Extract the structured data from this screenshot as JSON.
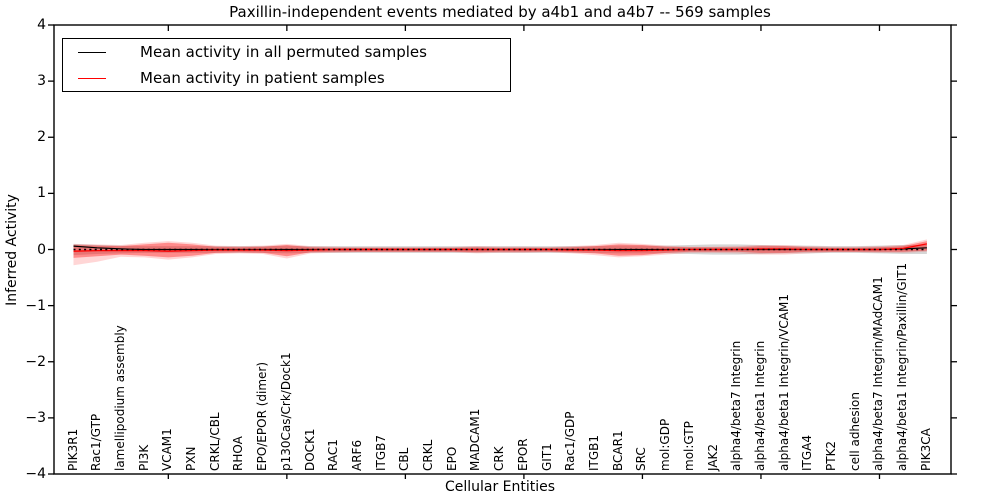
{
  "chart_data": {
    "type": "line",
    "title": "Paxillin-independent events mediated by a4b1 and a4b7 -- 569 samples",
    "xlabel": "Cellular Entities",
    "ylabel": "Inferred Activity",
    "ylim": [
      -4,
      4
    ],
    "yticks": [
      4,
      3,
      2,
      1,
      0,
      -1,
      -2,
      -3,
      -4
    ],
    "xtick_major_indices": [
      4,
      9,
      14,
      19,
      24,
      29,
      34
    ],
    "grid": false,
    "legend_position": "upper left",
    "background_color": "#ffffff",
    "axis_color": "#000000",
    "categories": [
      "PIK3R1",
      "Rac1/GTP",
      "lamellipodium assembly",
      "PI3K",
      "VCAM1",
      "PXN",
      "CRKL/CBL",
      "RHOA",
      "EPO/EPOR (dimer)",
      "p130Cas/Crk/Dock1",
      "DOCK1",
      "RAC1",
      "ARF6",
      "ITGB7",
      "CBL",
      "CRKL",
      "EPO",
      "MADCAM1",
      "CRK",
      "EPOR",
      "GIT1",
      "Rac1/GDP",
      "ITGB1",
      "BCAR1",
      "SRC",
      "mol:GDP",
      "mol:GTP",
      "JAK2",
      "alpha4/beta7 Integrin",
      "alpha4/beta1 Integrin",
      "alpha4/beta1 Integrin/VCAM1",
      "ITGA4",
      "PTK2",
      "cell adhesion",
      "alpha4/beta7 Integrin/MAdCAM1",
      "alpha4/beta1 Integrin/Paxillin/GIT1",
      "PIK3CA"
    ],
    "legend_entries": [
      {
        "label": "Mean activity in all permuted samples",
        "color": "#000000"
      },
      {
        "label": "Mean activity in patient samples",
        "color": "#ff0000"
      }
    ],
    "reference_line": {
      "y": 0,
      "style": "dotted",
      "color": "#000000"
    },
    "series": [
      {
        "name": "Mean activity in all permuted samples",
        "color": "#000000",
        "style": "solid",
        "values": [
          0.06,
          0.03,
          0.01,
          0,
          0,
          0,
          0,
          0,
          0,
          0,
          0,
          0,
          0,
          0,
          0,
          0,
          0,
          0,
          0,
          0,
          0,
          0,
          0,
          0,
          0,
          0,
          0,
          0,
          0,
          0,
          0,
          0,
          0,
          0,
          0,
          0.01,
          0.03
        ]
      },
      {
        "name": "Mean activity in patient samples",
        "color": "#ff0000",
        "style": "solid",
        "values": [
          -0.03,
          -0.02,
          -0.02,
          -0.02,
          -0.03,
          -0.02,
          -0.01,
          -0.01,
          -0.01,
          -0.02,
          -0.01,
          0,
          0,
          0,
          0,
          0,
          0,
          0,
          0,
          0,
          0,
          -0.01,
          -0.01,
          -0.02,
          -0.02,
          -0.01,
          0,
          0,
          0,
          0.01,
          0.01,
          0,
          0,
          0,
          0,
          0.02,
          0.1
        ]
      }
    ],
    "bands": [
      {
        "name": "permuted-samples-range",
        "color": "#999999",
        "opacity": 0.4,
        "upper": [
          0.1,
          0.08,
          0.07,
          0.06,
          0.06,
          0.06,
          0.06,
          0.06,
          0.06,
          0.07,
          0.06,
          0.06,
          0.06,
          0.06,
          0.06,
          0.06,
          0.06,
          0.06,
          0.06,
          0.06,
          0.06,
          0.06,
          0.06,
          0.07,
          0.07,
          0.07,
          0.08,
          0.09,
          0.09,
          0.08,
          0.07,
          0.07,
          0.06,
          0.06,
          0.07,
          0.08,
          0.08
        ],
        "lower": [
          -0.1,
          -0.08,
          -0.07,
          -0.06,
          -0.06,
          -0.06,
          -0.06,
          -0.06,
          -0.06,
          -0.07,
          -0.06,
          -0.06,
          -0.06,
          -0.06,
          -0.06,
          -0.06,
          -0.06,
          -0.06,
          -0.06,
          -0.06,
          -0.06,
          -0.06,
          -0.06,
          -0.07,
          -0.07,
          -0.07,
          -0.08,
          -0.09,
          -0.09,
          -0.08,
          -0.07,
          -0.07,
          -0.06,
          -0.06,
          -0.07,
          -0.08,
          -0.08
        ]
      },
      {
        "name": "patient-samples-range-outer",
        "color": "#ff0000",
        "opacity": 0.16,
        "upper": [
          0.1,
          0.09,
          0.08,
          0.12,
          0.15,
          0.12,
          0.07,
          0.06,
          0.07,
          0.1,
          0.06,
          0.05,
          0.04,
          0.04,
          0.04,
          0.04,
          0.04,
          0.06,
          0.05,
          0.05,
          0.04,
          0.06,
          0.08,
          0.12,
          0.1,
          0.07,
          0.05,
          0.05,
          0.06,
          0.08,
          0.08,
          0.06,
          0.05,
          0.05,
          0.06,
          0.08,
          0.18
        ],
        "lower": [
          -0.28,
          -0.22,
          -0.13,
          -0.14,
          -0.18,
          -0.14,
          -0.08,
          -0.07,
          -0.08,
          -0.16,
          -0.07,
          -0.06,
          -0.05,
          -0.05,
          -0.05,
          -0.05,
          -0.05,
          -0.07,
          -0.06,
          -0.06,
          -0.05,
          -0.07,
          -0.1,
          -0.14,
          -0.12,
          -0.09,
          -0.06,
          -0.06,
          -0.07,
          -0.09,
          -0.09,
          -0.07,
          -0.05,
          -0.05,
          -0.06,
          -0.06,
          -0.04
        ]
      },
      {
        "name": "patient-samples-range-inner",
        "color": "#ff0000",
        "opacity": 0.35,
        "upper": [
          0.08,
          0.07,
          0.06,
          0.09,
          0.12,
          0.09,
          0.05,
          0.04,
          0.05,
          0.08,
          0.04,
          0.03,
          0.03,
          0.03,
          0.03,
          0.03,
          0.03,
          0.04,
          0.03,
          0.03,
          0.03,
          0.04,
          0.06,
          0.09,
          0.08,
          0.05,
          0.04,
          0.04,
          0.04,
          0.06,
          0.06,
          0.04,
          0.03,
          0.03,
          0.04,
          0.06,
          0.15
        ],
        "lower": [
          -0.15,
          -0.12,
          -0.09,
          -0.11,
          -0.14,
          -0.11,
          -0.06,
          -0.05,
          -0.06,
          -0.12,
          -0.05,
          -0.04,
          -0.04,
          -0.04,
          -0.04,
          -0.04,
          -0.04,
          -0.05,
          -0.04,
          -0.04,
          -0.04,
          -0.05,
          -0.07,
          -0.11,
          -0.1,
          -0.06,
          -0.04,
          -0.04,
          -0.04,
          -0.06,
          -0.06,
          -0.04,
          -0.04,
          -0.04,
          -0.04,
          -0.04,
          -0.02
        ]
      }
    ]
  }
}
